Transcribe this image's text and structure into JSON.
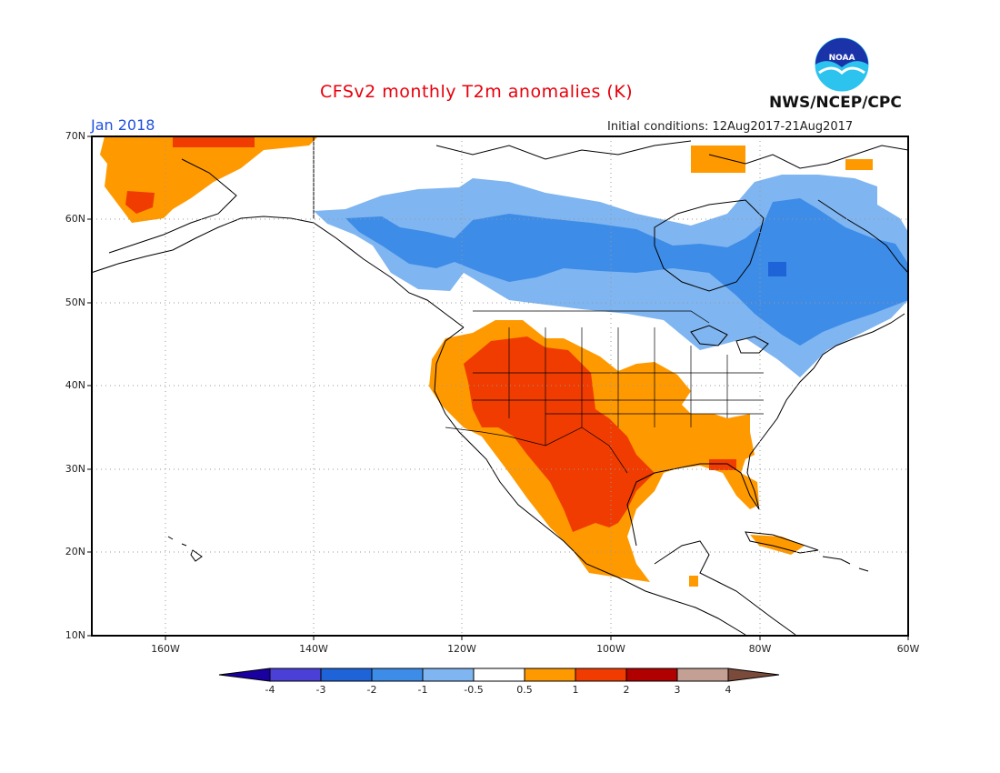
{
  "header": {
    "title": "CFSv2 monthly T2m anomalies (K)",
    "agency": "NWS/NCEP/CPC",
    "month": "Jan 2018",
    "initial_conditions": "Initial conditions: 12Aug2017-21Aug2017",
    "logo_text": "NOAA"
  },
  "axes": {
    "latitude_labels": [
      "70N",
      "60N",
      "50N",
      "40N",
      "30N",
      "20N",
      "10N"
    ],
    "longitude_labels": [
      "160W",
      "140W",
      "120W",
      "100W",
      "80W",
      "60W"
    ]
  },
  "colorbar": {
    "ticks": [
      "-4",
      "-3",
      "-2",
      "-1",
      "-0.5",
      "0.5",
      "1",
      "2",
      "3",
      "4"
    ],
    "colors": [
      "#1a00a0",
      "#4a3fd6",
      "#1f63d8",
      "#3d8ce8",
      "#7fb5f0",
      "#ffffff",
      "#ff9900",
      "#f03c00",
      "#b00000",
      "#c4a094",
      "#7a4a3a"
    ]
  },
  "colors": {
    "warm_05_1": "#ff9900",
    "warm_1_2": "#f03c00",
    "cool_05_1": "#7fb5f0",
    "cool_1_2": "#3d8ce8",
    "cool_2_3": "#1f63d8"
  }
}
